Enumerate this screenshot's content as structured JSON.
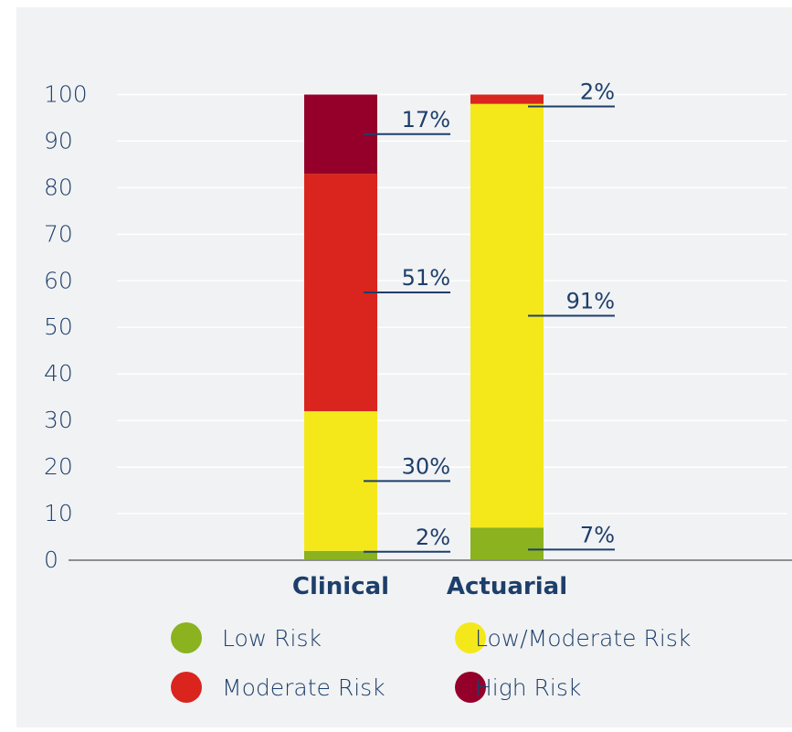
{
  "colors": {
    "panel_bg": "#f1f2f4",
    "axis_text": "#1d3f6a",
    "callout": "#1d3f6a",
    "grid": "#ffffff",
    "baseline": "#8e8e8e",
    "low": "#8bb21f",
    "low_moderate": "#f4e81b",
    "moderate": "#d9251d",
    "high": "#95002a"
  },
  "chart_data": {
    "type": "bar",
    "stacked": true,
    "title": "",
    "xlabel": "",
    "ylabel": "",
    "ylim": [
      0,
      105
    ],
    "y_ticks": [
      "0",
      "10",
      "20",
      "30",
      "40",
      "50",
      "60",
      "70",
      "80",
      "90",
      "100"
    ],
    "grid": true,
    "legend_position": "bottom",
    "categories": [
      "Clinical",
      "Actuarial"
    ],
    "series": [
      {
        "name": "Low Risk",
        "color_key": "low",
        "values": [
          2,
          7
        ],
        "labels": [
          "2%",
          "7%"
        ]
      },
      {
        "name": "Low/Moderate Risk",
        "color_key": "low_moderate",
        "values": [
          30,
          91
        ],
        "labels": [
          "30%",
          "91%"
        ]
      },
      {
        "name": "Moderate Risk",
        "color_key": "moderate",
        "values": [
          51,
          2
        ],
        "labels": [
          "51%",
          "2%"
        ]
      },
      {
        "name": "High Risk",
        "color_key": "high",
        "values": [
          17,
          0
        ],
        "labels": [
          "17%",
          ""
        ]
      }
    ]
  }
}
